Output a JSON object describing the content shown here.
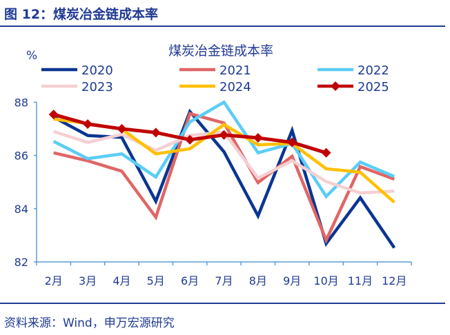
{
  "figure_title": "图 12：煤炭冶金链成本率",
  "source": "资料来源：Wind，申万宏源研究",
  "chart_data": {
    "type": "line",
    "title": "煤炭冶金链成本率",
    "ylabel": "%",
    "xlabel": "",
    "ylim": [
      82,
      88
    ],
    "yticks": [
      82,
      84,
      86,
      88
    ],
    "categories": [
      "2月",
      "3月",
      "4月",
      "5月",
      "6月",
      "7月",
      "8月",
      "9月",
      "10月",
      "11月",
      "12月"
    ],
    "legend": "top",
    "grid": false,
    "series": [
      {
        "name": "2020",
        "color": "#0a3592",
        "values": [
          87.44,
          86.75,
          86.68,
          84.28,
          87.65,
          86.14,
          83.73,
          86.94,
          82.69,
          84.41,
          82.53
        ]
      },
      {
        "name": "2021",
        "color": "#e06666",
        "values": [
          86.1,
          85.8,
          85.41,
          83.68,
          87.57,
          87.22,
          84.98,
          85.97,
          82.82,
          85.58,
          85.11
        ]
      },
      {
        "name": "2022",
        "color": "#5bcdf5",
        "values": [
          86.53,
          85.88,
          86.06,
          85.19,
          87.26,
          88.0,
          86.1,
          86.45,
          84.46,
          85.75,
          85.21
        ]
      },
      {
        "name": "2023",
        "color": "#f5cfd3",
        "values": [
          86.9,
          86.49,
          86.79,
          86.19,
          86.75,
          86.88,
          85.15,
          85.8,
          85.02,
          84.59,
          84.66
        ]
      },
      {
        "name": "2024",
        "color": "#ffc000",
        "values": [
          87.37,
          87.2,
          86.99,
          86.06,
          86.25,
          87.16,
          86.4,
          86.45,
          85.5,
          85.37,
          84.24
        ]
      },
      {
        "name": "2025",
        "color": "#c00000",
        "marker": "diamond",
        "values": [
          87.54,
          87.18,
          87.0,
          86.86,
          86.59,
          86.77,
          86.66,
          86.49,
          86.1,
          null,
          null
        ]
      }
    ]
  }
}
